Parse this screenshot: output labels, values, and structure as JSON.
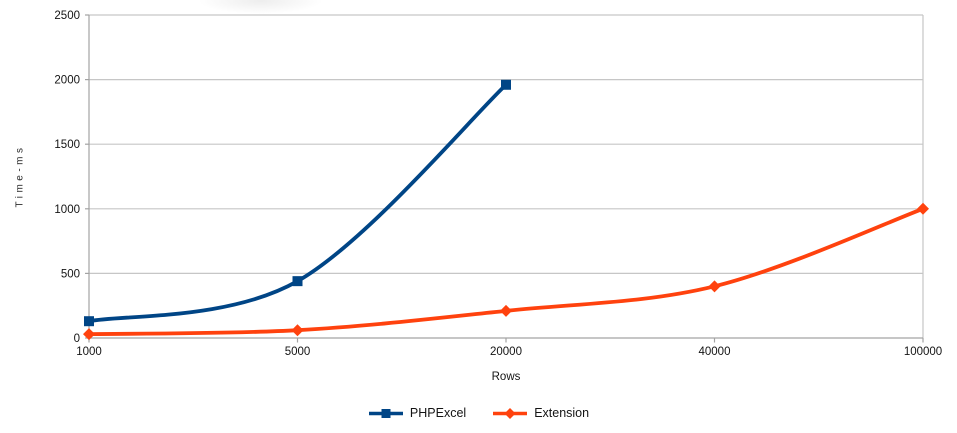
{
  "chart_data": {
    "type": "line",
    "title": "",
    "xlabel": "Rows",
    "ylabel": "Time-ms",
    "categories": [
      "1000",
      "5000",
      "20000",
      "40000",
      "100000"
    ],
    "series": [
      {
        "name": "PHPExcel",
        "color": "#004586",
        "marker": "square",
        "values": [
          130,
          440,
          1960,
          null,
          null
        ]
      },
      {
        "name": "Extension",
        "color": "#FF420E",
        "marker": "diamond",
        "values": [
          30,
          60,
          210,
          400,
          1000
        ]
      }
    ],
    "ylim": [
      0,
      2500
    ],
    "ytick_step": 500,
    "yticks": [
      "0",
      "500",
      "1000",
      "1500",
      "2000",
      "2500"
    ],
    "grid": "horizontal-major",
    "smooth_lines": true,
    "legend_position": "bottom-center",
    "colors": {
      "background": "#ffffff",
      "grid": "#c6c6c6",
      "axis": "#a3a3a3",
      "text": "#141414"
    }
  }
}
